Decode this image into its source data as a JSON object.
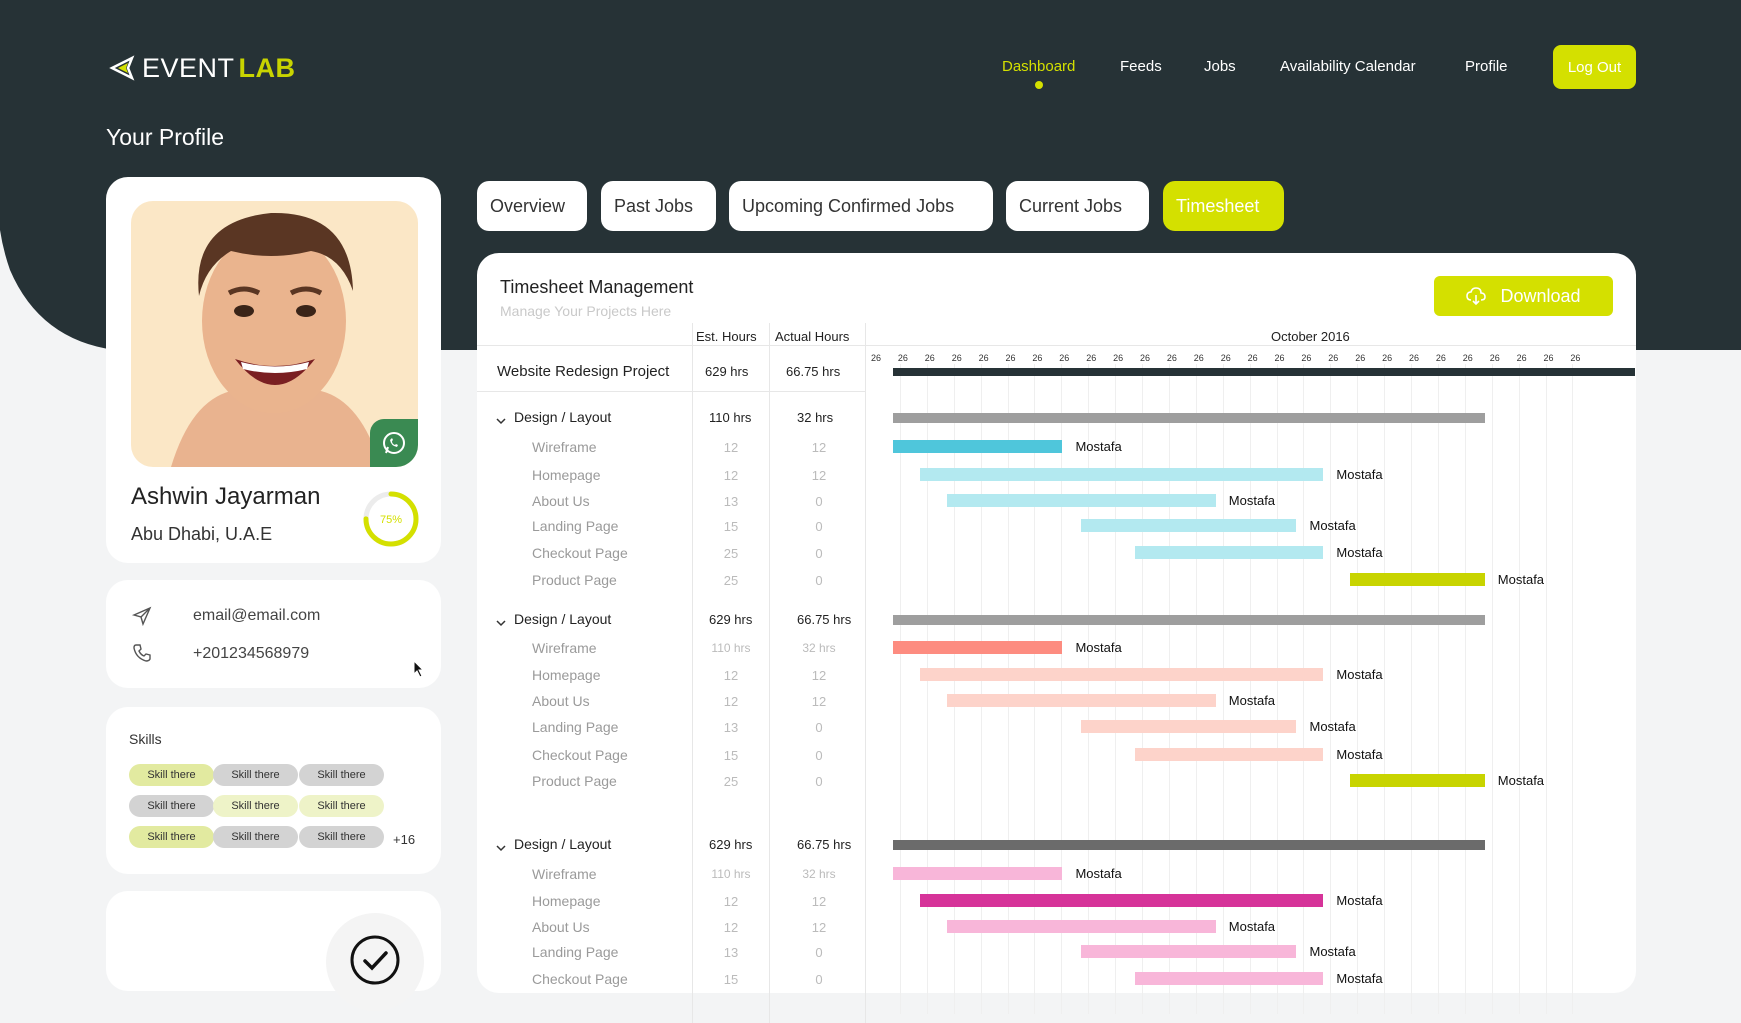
{
  "header": {
    "logo": {
      "prefix": "EVENT",
      "suffix": "LAB"
    },
    "nav": [
      {
        "label": "Dashboard",
        "active": true
      },
      {
        "label": "Feeds"
      },
      {
        "label": "Jobs"
      },
      {
        "label": "Availability Calendar"
      },
      {
        "label": "Profile"
      }
    ],
    "logout": "Log Out"
  },
  "page_title": "Your Profile",
  "profile": {
    "name": "Ashwin Jayarman",
    "location": "Abu Dhabi, U.A.E",
    "completion": "75%",
    "completion_value": 0.75,
    "email": "email@email.com",
    "phone": "+201234568979"
  },
  "skills": {
    "title": "Skills",
    "chips": [
      "Skill there",
      "Skill there",
      "Skill there",
      "Skill there",
      "Skill there",
      "Skill there",
      "Skill there",
      "Skill there",
      "Skill there"
    ],
    "more": "+16"
  },
  "tabs": [
    "Overview",
    "Past Jobs",
    "Upcoming Confirmed Jobs",
    "Current Jobs",
    "Timesheet"
  ],
  "timesheet": {
    "title": "Timesheet Management",
    "subtitle": "Manage Your Projects Here",
    "download": "Download",
    "col_est": "Est. Hours",
    "col_actual": "Actual Hours",
    "month": "October 2016",
    "day_label": "26",
    "project": {
      "name": "Website Redesign Project",
      "est": "629 hrs",
      "actual": "66.75 hrs"
    },
    "groups": [
      {
        "name": "Design / Layout",
        "est": "110 hrs",
        "actual": "32 hrs",
        "bar_color": "#9e9e9e",
        "tasks": [
          {
            "name": "Wireframe",
            "est": "12",
            "actual": "12",
            "who": "Mostafa",
            "color": "#4fc6db"
          },
          {
            "name": "Homepage",
            "est": "12",
            "actual": "12",
            "who": "Mostafa",
            "color": "#b3e9f0"
          },
          {
            "name": "About Us",
            "est": "13",
            "actual": "0",
            "who": "Mostafa",
            "color": "#b3e9f0"
          },
          {
            "name": "Landing Page",
            "est": "15",
            "actual": "0",
            "who": "Mostafa",
            "color": "#b3e9f0"
          },
          {
            "name": "Checkout Page",
            "est": "25",
            "actual": "0",
            "who": "Mostafa",
            "color": "#b3e9f0"
          },
          {
            "name": "Product Page",
            "est": "25",
            "actual": "0",
            "who": "Mostafa",
            "color": "#c8d400"
          }
        ]
      },
      {
        "name": "Design / Layout",
        "est": "629 hrs",
        "actual": "66.75 hrs",
        "bar_color": "#9e9e9e",
        "tasks": [
          {
            "name": "Wireframe",
            "est": "110 hrs",
            "actual": "32 hrs",
            "who": "Mostafa",
            "color": "#fd8c80"
          },
          {
            "name": "Homepage",
            "est": "12",
            "actual": "12",
            "who": "Mostafa",
            "color": "#fdd3ca"
          },
          {
            "name": "About Us",
            "est": "12",
            "actual": "12",
            "who": "Mostafa",
            "color": "#fdd3ca"
          },
          {
            "name": "Landing Page",
            "est": "13",
            "actual": "0",
            "who": "Mostafa",
            "color": "#fdd3ca"
          },
          {
            "name": "Checkout Page",
            "est": "15",
            "actual": "0",
            "who": "Mostafa",
            "color": "#fdd3ca"
          },
          {
            "name": "Product Page",
            "est": "25",
            "actual": "0",
            "who": "Mostafa",
            "color": "#c8d400"
          }
        ]
      },
      {
        "name": "Design / Layout",
        "est": "629 hrs",
        "actual": "66.75 hrs",
        "bar_color": "#6b6b6b",
        "tasks": [
          {
            "name": "Wireframe",
            "est": "110 hrs",
            "actual": "32 hrs",
            "who": "Mostafa",
            "color": "#f8b6d9"
          },
          {
            "name": "Homepage",
            "est": "12",
            "actual": "12",
            "who": "Mostafa",
            "color": "#d63399"
          },
          {
            "name": "About Us",
            "est": "12",
            "actual": "12",
            "who": "Mostafa",
            "color": "#f8b6d9"
          },
          {
            "name": "Landing Page",
            "est": "13",
            "actual": "0",
            "who": "Mostafa",
            "color": "#f8b6d9"
          },
          {
            "name": "Checkout Page",
            "est": "15",
            "actual": "0",
            "who": "Mostafa",
            "color": "#f8b6d9"
          }
        ]
      }
    ]
  },
  "colors": {
    "accent": "#d4e000",
    "dark": "#263236",
    "project_bar": "#263236"
  }
}
